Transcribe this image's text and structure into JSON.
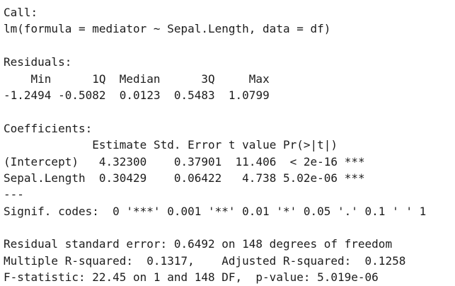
{
  "call": {
    "heading": "Call:",
    "formula": "lm(formula = mediator ~ Sepal.Length, data = df)"
  },
  "residuals": {
    "heading": "Residuals:",
    "header": [
      "Min",
      "1Q",
      "Median",
      "3Q",
      "Max"
    ],
    "values": [
      "-1.2494",
      "-0.5082",
      "0.0123",
      "0.5483",
      "1.0799"
    ]
  },
  "coefficients": {
    "heading": "Coefficients:",
    "header": [
      "Estimate",
      "Std. Error",
      "t value",
      "Pr(>|t|)"
    ],
    "rows": [
      {
        "term": "(Intercept)",
        "values": [
          "4.32300",
          "0.37901",
          "11.406",
          "< 2e-16"
        ],
        "signif": "***"
      },
      {
        "term": "Sepal.Length",
        "values": [
          "0.30429",
          "0.06422",
          "4.738",
          "5.02e-06"
        ],
        "signif": "***"
      }
    ],
    "separator": "---",
    "signif_codes": "Signif. codes:  0 '***' 0.001 '**' 0.01 '*' 0.05 '.' 0.1 ' ' 1"
  },
  "summary": {
    "residual_se": "Residual standard error: 0.6492 on 148 degrees of freedom",
    "multiple_r2": "Multiple R-squared:  0.1317,",
    "adjusted_r2": "Adjusted R-squared:  0.1258",
    "f_statistic": "F-statistic: 22.45 on 1 and 148 DF,  p-value: 5.019e-06"
  }
}
